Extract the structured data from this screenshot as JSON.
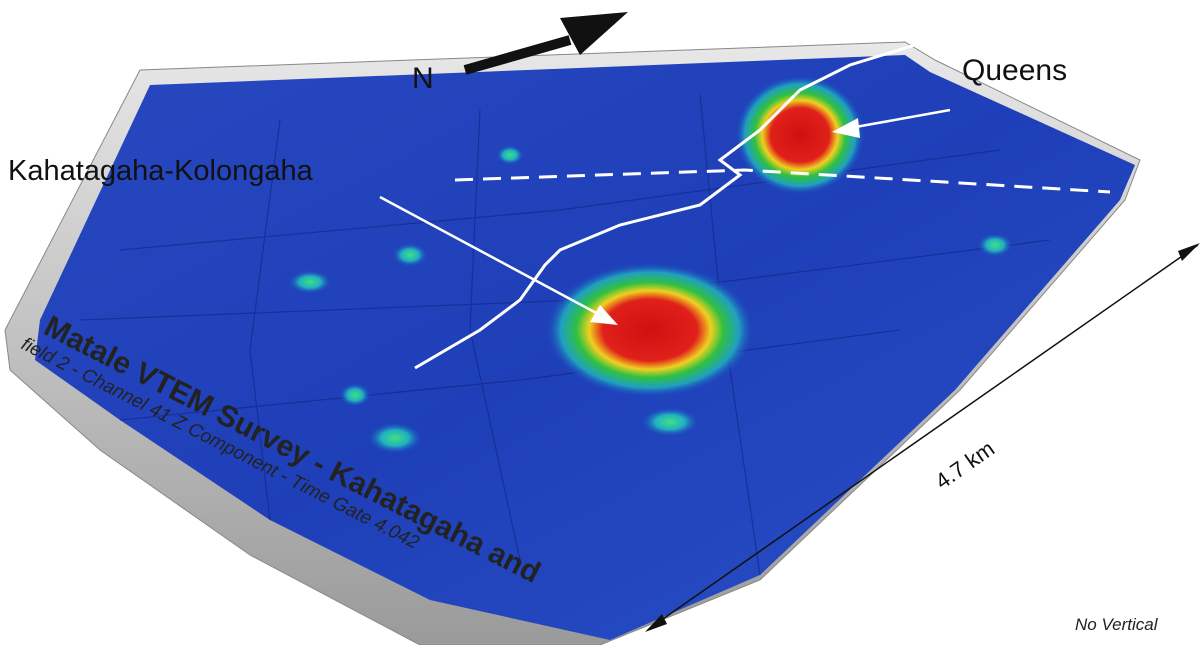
{
  "north_label": "N",
  "labels": {
    "queens": "Queens",
    "kahatagaha": "Kahatagaha-Kolongaha"
  },
  "sheet_title": "Matale VTEM Survey - Kahatagaha and",
  "sheet_subtitle": "field 2 - Channel 41 Z Component - Time Gate 4.042",
  "scale_label": "4.7 km",
  "vertical_note": "No Vertical"
}
